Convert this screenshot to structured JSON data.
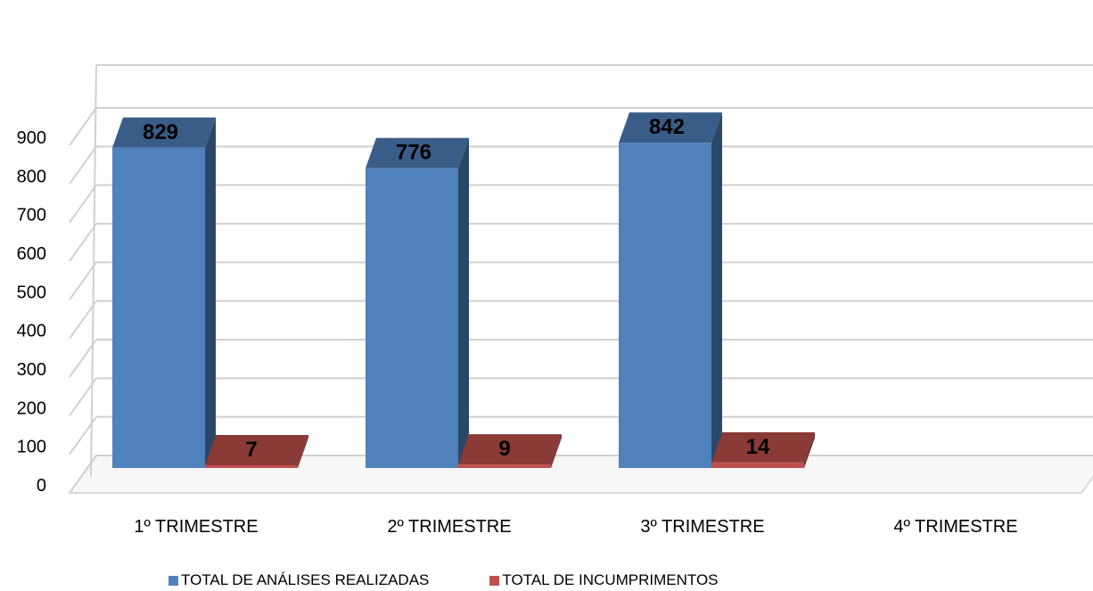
{
  "chart_data": {
    "type": "bar",
    "categories": [
      "1º TRIMESTRE",
      "2º TRIMESTRE",
      "3º TRIMESTRE",
      "4º TRIMESTRE"
    ],
    "series": [
      {
        "name": "TOTAL DE ANÁLISES REALIZADAS",
        "values": [
          829,
          776,
          842,
          null
        ],
        "color": "#4F81BD"
      },
      {
        "name": "TOTAL DE INCUMPRIMENTOS",
        "values": [
          7,
          9,
          14,
          null
        ],
        "color": "#C0504D"
      }
    ],
    "yticks": [
      "0",
      "100",
      "200",
      "300",
      "400",
      "500",
      "600",
      "700",
      "800",
      "900"
    ],
    "ylim": [
      0,
      900
    ],
    "grid": true,
    "legend_position": "bottom",
    "style": "3d-column"
  }
}
